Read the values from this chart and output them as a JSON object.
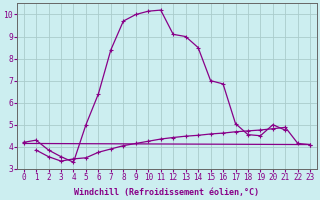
{
  "xlabel": "Windchill (Refroidissement éolien,°C)",
  "background_color": "#cceef0",
  "grid_color": "#aacccc",
  "line_color": "#880088",
  "x_values": [
    0,
    1,
    2,
    3,
    4,
    5,
    6,
    7,
    8,
    9,
    10,
    11,
    12,
    13,
    14,
    15,
    16,
    17,
    18,
    19,
    20,
    21,
    22,
    23
  ],
  "y_curve1": [
    4.2,
    4.3,
    3.85,
    3.55,
    3.3,
    5.0,
    6.4,
    8.4,
    9.7,
    10.0,
    10.15,
    10.2,
    9.1,
    9.0,
    8.5,
    7.0,
    6.85,
    5.05,
    4.55,
    4.5,
    5.0,
    4.75,
    null,
    null
  ],
  "y_curve2": [
    4.15,
    null,
    null,
    null,
    null,
    null,
    null,
    null,
    null,
    null,
    null,
    null,
    null,
    null,
    null,
    null,
    null,
    null,
    null,
    null,
    null,
    null,
    null,
    4.1
  ],
  "y_curve3": [
    null,
    3.85,
    3.55,
    3.35,
    3.45,
    3.5,
    3.75,
    3.9,
    4.05,
    4.15,
    4.25,
    4.35,
    4.42,
    4.48,
    4.52,
    4.58,
    4.62,
    4.68,
    4.72,
    4.76,
    4.82,
    4.88,
    4.15,
    4.1
  ],
  "ylim": [
    3.0,
    10.5
  ],
  "xlim": [
    -0.5,
    23.5
  ],
  "yticks": [
    3,
    4,
    5,
    6,
    7,
    8,
    9,
    10
  ],
  "xticks": [
    0,
    1,
    2,
    3,
    4,
    5,
    6,
    7,
    8,
    9,
    10,
    11,
    12,
    13,
    14,
    15,
    16,
    17,
    18,
    19,
    20,
    21,
    22,
    23
  ],
  "tick_fontsize": 5.5,
  "xlabel_fontsize": 6.0
}
